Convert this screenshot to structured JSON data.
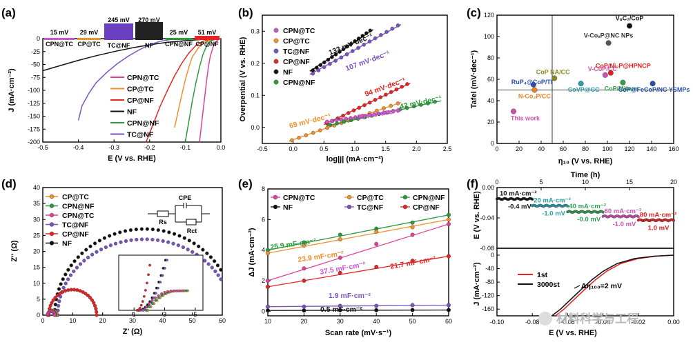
{
  "panel_labels": [
    "(a)",
    "(b)",
    "(c)",
    "(d)",
    "(e)",
    "(f)"
  ],
  "watermark": "材料科学与工程",
  "colors": {
    "CPN@TC": "#cc55cc",
    "CP@TC": "#f0902a",
    "TC@NF": "#7b52c4",
    "CP@NF": "#e52424",
    "NF": "#111111",
    "CPN@NF": "#2a9a3a",
    "HER_CPN": "#e0409a",
    "DOT_BLUE": "#2850a8",
    "DOT_TEAL": "#28a0a8",
    "DOT_OLIVE": "#8a8a20",
    "DOT_GREEN": "#30a050",
    "DOT_PINK": "#d050b0",
    "DOT_ORANGE": "#f08020"
  },
  "chart_data": [
    {
      "id": "a",
      "type": "line",
      "title": "",
      "xlabel": "E (V vs. RHE)",
      "ylabel": "J (mA·cm⁻²)",
      "xlim": [
        -0.5,
        0.0
      ],
      "ylim": [
        -200,
        0
      ],
      "xticks": [
        "-0.5",
        "-0.4",
        "-0.3",
        "-0.2",
        "-0.1",
        "0.0"
      ],
      "yticks": [
        "0",
        "-25",
        "-50",
        "-75",
        "-100",
        "-125",
        "-150",
        "-175",
        "-200"
      ],
      "legend": [
        "CPN@TC",
        "CP@TC",
        "CP@NF",
        "NF",
        "CPN@NF",
        "TC@NF"
      ],
      "inset": {
        "overpotentials": [
          "15 mV",
          "29 mV",
          "245 mV",
          "270 mV",
          "25 mV",
          "51 mV"
        ],
        "labels": [
          "CPN@TC",
          "CP@TC",
          "TC@NF",
          "NF",
          "CPN@NF",
          "CP@NF"
        ]
      },
      "series": [
        {
          "name": "NF",
          "points": [
            [
              -0.5,
              -62
            ],
            [
              -0.45,
              -52
            ],
            [
              -0.4,
              -42
            ],
            [
              -0.35,
              -33
            ],
            [
              -0.3,
              -25
            ],
            [
              -0.25,
              -18
            ],
            [
              -0.2,
              -12
            ],
            [
              -0.15,
              -7
            ],
            [
              -0.1,
              -4
            ],
            [
              -0.05,
              -1.5
            ],
            [
              0,
              0
            ]
          ]
        },
        {
          "name": "TC@NF",
          "points": [
            [
              -0.4,
              -158
            ],
            [
              -0.39,
              -130
            ],
            [
              -0.37,
              -105
            ],
            [
              -0.35,
              -85
            ],
            [
              -0.32,
              -65
            ],
            [
              -0.29,
              -48
            ],
            [
              -0.26,
              -34
            ],
            [
              -0.23,
              -22
            ],
            [
              -0.2,
              -12
            ],
            [
              -0.17,
              -5
            ],
            [
              -0.14,
              -1.5
            ],
            [
              -0.1,
              0
            ]
          ]
        },
        {
          "name": "CP@NF",
          "points": [
            [
              -0.21,
              -200
            ],
            [
              -0.19,
              -165
            ],
            [
              -0.17,
              -130
            ],
            [
              -0.15,
              -100
            ],
            [
              -0.13,
              -72
            ],
            [
              -0.11,
              -48
            ],
            [
              -0.09,
              -28
            ],
            [
              -0.07,
              -13
            ],
            [
              -0.05,
              -5
            ],
            [
              -0.03,
              -1.5
            ],
            [
              0,
              0
            ]
          ]
        },
        {
          "name": "CP@TC",
          "points": [
            [
              -0.13,
              -172
            ],
            [
              -0.12,
              -140
            ],
            [
              -0.11,
              -110
            ],
            [
              -0.1,
              -80
            ],
            [
              -0.09,
              -55
            ],
            [
              -0.08,
              -35
            ],
            [
              -0.06,
              -15
            ],
            [
              -0.04,
              -5
            ],
            [
              -0.02,
              -1
            ],
            [
              0,
              0
            ]
          ]
        },
        {
          "name": "CPN@NF",
          "points": [
            [
              -0.1,
              -200
            ],
            [
              -0.09,
              -160
            ],
            [
              -0.08,
              -120
            ],
            [
              -0.07,
              -85
            ],
            [
              -0.06,
              -55
            ],
            [
              -0.05,
              -30
            ],
            [
              -0.04,
              -14
            ],
            [
              -0.03,
              -5
            ],
            [
              -0.015,
              -1
            ],
            [
              0,
              0
            ]
          ]
        },
        {
          "name": "CPN@TC",
          "points": [
            [
              -0.06,
              -200
            ],
            [
              -0.055,
              -170
            ],
            [
              -0.05,
              -140
            ],
            [
              -0.045,
              -110
            ],
            [
              -0.04,
              -80
            ],
            [
              -0.035,
              -55
            ],
            [
              -0.03,
              -35
            ],
            [
              -0.02,
              -12
            ],
            [
              -0.01,
              -3
            ],
            [
              0,
              0
            ]
          ]
        }
      ]
    },
    {
      "id": "b",
      "type": "scatter",
      "title": "",
      "xlabel": "log|j| (mA·cm⁻²)",
      "ylabel": "Overpential (V vs. RHE)",
      "xlim": [
        -0.5,
        2.5
      ],
      "ylim": [
        -0.05,
        0.35
      ],
      "xticks": [
        "-0.5",
        "0.0",
        "0.5",
        "1.0",
        "1.5",
        "2.0",
        "2.5"
      ],
      "yticks": [
        "0.0",
        "0.1",
        "0.2",
        "0.3"
      ],
      "legend": [
        "CPN@TC",
        "CP@TC",
        "TC@NF",
        "CP@NF",
        "NF",
        "CPN@NF"
      ],
      "annotations": [
        "133 mV·dec⁻¹",
        "107 mV·dec⁻¹",
        "94 mV·dec⁻¹",
        "69 mV·dec⁻¹",
        "42 mV·dec⁻¹",
        "30 mV·dec⁻¹"
      ],
      "series": [
        {
          "name": "NF",
          "x0": 0.32,
          "x1": 1.25,
          "y0": 0.178,
          "y1": 0.302
        },
        {
          "name": "TC@NF",
          "x0": 0.32,
          "x1": 1.7,
          "y0": 0.168,
          "y1": 0.318
        },
        {
          "name": "CP@NF",
          "x0": 0.55,
          "x1": 1.85,
          "y0": 0.012,
          "y1": 0.135
        },
        {
          "name": "CP@TC",
          "x0": -0.02,
          "x1": 1.7,
          "y0": -0.04,
          "y1": 0.075
        },
        {
          "name": "CPN@NF",
          "x0": 0.6,
          "x1": 2.3,
          "y0": 0.008,
          "y1": 0.08
        },
        {
          "name": "CPN@TC",
          "x0": 0.55,
          "x1": 1.7,
          "y0": 0.018,
          "y1": 0.052
        }
      ]
    },
    {
      "id": "c",
      "type": "scatter",
      "title": "",
      "xlabel": "η₁₀ (V vs. RHE)",
      "ylabel": "Tafel (mV·dec⁻¹)",
      "xlim": [
        0,
        160
      ],
      "ylim": [
        0,
        120
      ],
      "xticks": [
        "0",
        "20",
        "40",
        "60",
        "80",
        "100",
        "120",
        "140",
        "160"
      ],
      "yticks": [
        "0",
        "20",
        "40",
        "60",
        "80",
        "100",
        "120"
      ],
      "reference": {
        "x": 50,
        "y": 50
      },
      "points": [
        {
          "label": "V₈C₇/CoP",
          "x": 120,
          "y": 110,
          "color": "#111111"
        },
        {
          "label": "V-CoₓP@NC NPs",
          "x": 101,
          "y": 94,
          "color": "#555555"
        },
        {
          "label": "CoP NA/CC",
          "x": 52,
          "y": 61,
          "color": "#8a8a20"
        },
        {
          "label": "V-CoP/CC",
          "x": 98,
          "y": 64,
          "color": "#d050b0"
        },
        {
          "label": "CoP/Ni₂P@HPNCP",
          "x": 103,
          "y": 66,
          "color": "#e02020"
        },
        {
          "label": "RuP₄@CoP/TI",
          "x": 33,
          "y": 55,
          "color": "#2850a8"
        },
        {
          "label": "CoVP@CC",
          "x": 76,
          "y": 56,
          "color": "#28a0a8"
        },
        {
          "label": "CoP/MXene",
          "x": 114,
          "y": 57,
          "color": "#30a050"
        },
        {
          "label": "N-Co₂P/CC",
          "x": 34,
          "y": 50,
          "color": "#f08020"
        },
        {
          "label": "CoP@FeCoP/NC YSMPs",
          "x": 141,
          "y": 56,
          "color": "#2850a8"
        },
        {
          "label": "This work",
          "x": 15,
          "y": 30,
          "color": "#d050b0"
        }
      ]
    },
    {
      "id": "d",
      "type": "line",
      "title": "",
      "xlabel": "Z' (Ω)",
      "ylabel": "Z'' (Ω)",
      "xlim": [
        0,
        60
      ],
      "ylim": [
        0,
        40
      ],
      "xticks": [
        "0",
        "10",
        "20",
        "30",
        "40",
        "50",
        "60"
      ],
      "yticks": [
        "0",
        "5",
        "10",
        "15",
        "20",
        "25",
        "30",
        "35",
        "40"
      ],
      "legend": [
        "CP@TC",
        "CPN@NF",
        "CPN@TC",
        "TC@NF",
        "CP@NF",
        "NF"
      ],
      "circuit": {
        "cpe": "CPE",
        "rs": "Rs",
        "rct": "Rct"
      },
      "inset_xticks": [
        "1",
        "3",
        "5"
      ],
      "series": [
        {
          "name": "NF",
          "center": 34,
          "radius": 30,
          "scale": 0.9
        },
        {
          "name": "TC@NF",
          "center": 34,
          "radius": 29,
          "scale": 0.82
        },
        {
          "name": "CP@NF",
          "center": 10,
          "radius": 8,
          "scale": 1.0
        },
        {
          "name": "CP@TC",
          "center": 3.2,
          "radius": 1.5,
          "scale": 1.0
        },
        {
          "name": "CPN@NF",
          "center": 3.0,
          "radius": 1.3,
          "scale": 1.0
        },
        {
          "name": "CPN@TC",
          "center": 2.8,
          "radius": 1.2,
          "scale": 1.0
        }
      ]
    },
    {
      "id": "e",
      "type": "scatter",
      "title": "",
      "xlabel": "Scan rate (mV·s⁻¹)",
      "ylabel": "ΔJ (mA·cm⁻²)",
      "xlim": [
        10,
        60
      ],
      "ylim": [
        -0.3,
        8
      ],
      "xticks": [
        "10",
        "20",
        "30",
        "40",
        "50",
        "60"
      ],
      "yticks": [
        "0",
        "2",
        "4",
        "6",
        "8"
      ],
      "legend": [
        "CPN@TC",
        "CP@TC",
        "CPN@NF",
        "NF",
        "TC@NF",
        "CP@NF"
      ],
      "annotations": [
        "25.9 mF·cm⁻²",
        "23.9 mF·cm⁻²",
        "37.5 mF·cm⁻²",
        "21.7 mF·cm⁻²",
        "1.9 mF·cm⁻²",
        "0.5 mF·cm⁻²"
      ],
      "x": [
        10,
        20,
        30,
        40,
        50,
        60
      ],
      "series": [
        {
          "name": "CPN@NF",
          "values": [
            4.0,
            4.5,
            5.0,
            5.4,
            5.8,
            6.3
          ]
        },
        {
          "name": "CP@TC",
          "values": [
            3.8,
            4.3,
            4.7,
            5.2,
            5.5,
            6.0
          ]
        },
        {
          "name": "CPN@TC",
          "values": [
            2.0,
            2.8,
            3.5,
            4.4,
            5.0,
            5.7
          ]
        },
        {
          "name": "CP@NF",
          "values": [
            1.6,
            2.0,
            2.5,
            2.9,
            3.3,
            3.6
          ]
        },
        {
          "name": "TC@NF",
          "values": [
            0.3,
            0.3,
            0.35,
            0.35,
            0.4,
            0.4
          ]
        },
        {
          "name": "NF",
          "values": [
            0.05,
            0.05,
            0.07,
            0.07,
            0.08,
            0.08
          ]
        }
      ]
    },
    {
      "id": "f",
      "type": "line",
      "title": "",
      "top": {
        "xlabel": "Time (h)",
        "ylabel": "E (V vs. RHE)",
        "xlim": [
          0,
          20
        ],
        "ylim": [
          -0.08,
          0.0
        ],
        "xticks": [
          "0",
          "5",
          "10",
          "15",
          "20"
        ],
        "yticks": [
          "0.00",
          "-0.04",
          "-0.08"
        ],
        "segments": [
          {
            "current": "10 mA·cm⁻²",
            "potential": "-0.4 mV",
            "t0": 0,
            "t1": 4,
            "e": -0.015,
            "color": "#111111"
          },
          {
            "current": "20 mA·cm⁻²",
            "potential": "-1.0 mV",
            "t0": 4,
            "t1": 8,
            "e": -0.024,
            "color": "#28a0a8"
          },
          {
            "current": "40 mA·cm⁻²",
            "potential": "-0.0 mV",
            "t0": 8,
            "t1": 12,
            "e": -0.032,
            "color": "#30a050"
          },
          {
            "current": "60 mA·cm⁻²",
            "potential": "-1.0 mV",
            "t0": 12,
            "t1": 16,
            "e": -0.038,
            "color": "#d050b0"
          },
          {
            "current": "80 mA·cm⁻²",
            "potential": "1.0 mV",
            "t0": 16,
            "t1": 20,
            "e": -0.043,
            "color": "#e02020"
          }
        ]
      },
      "bottom": {
        "xlabel": "E  (V vs. RHE)",
        "ylabel": "J (mA·cm⁻²)",
        "xlim": [
          -0.1,
          0.0
        ],
        "ylim": [
          -180,
          0
        ],
        "xticks": [
          "-0.10",
          "-0.08",
          "-0.06",
          "-0.04",
          "-0.02",
          "0.00"
        ],
        "yticks": [
          "0",
          "-40",
          "-80",
          "-120",
          "-160"
        ],
        "legend": [
          "1st",
          "3000st"
        ],
        "annotation": "Δη₁₀₀=2 mV",
        "series": [
          {
            "name": "1st",
            "points": [
              [
                -0.067,
                -180
              ],
              [
                -0.062,
                -160
              ],
              [
                -0.056,
                -130
              ],
              [
                -0.05,
                -100
              ],
              [
                -0.044,
                -72
              ],
              [
                -0.038,
                -48
              ],
              [
                -0.03,
                -25
              ],
              [
                -0.02,
                -10
              ],
              [
                -0.01,
                -3
              ],
              [
                0,
                0
              ]
            ]
          },
          {
            "name": "3000st",
            "points": [
              [
                -0.069,
                -180
              ],
              [
                -0.064,
                -160
              ],
              [
                -0.058,
                -130
              ],
              [
                -0.052,
                -100
              ],
              [
                -0.046,
                -72
              ],
              [
                -0.04,
                -48
              ],
              [
                -0.032,
                -25
              ],
              [
                -0.022,
                -10
              ],
              [
                -0.011,
                -3
              ],
              [
                0,
                0
              ]
            ]
          }
        ]
      }
    }
  ]
}
